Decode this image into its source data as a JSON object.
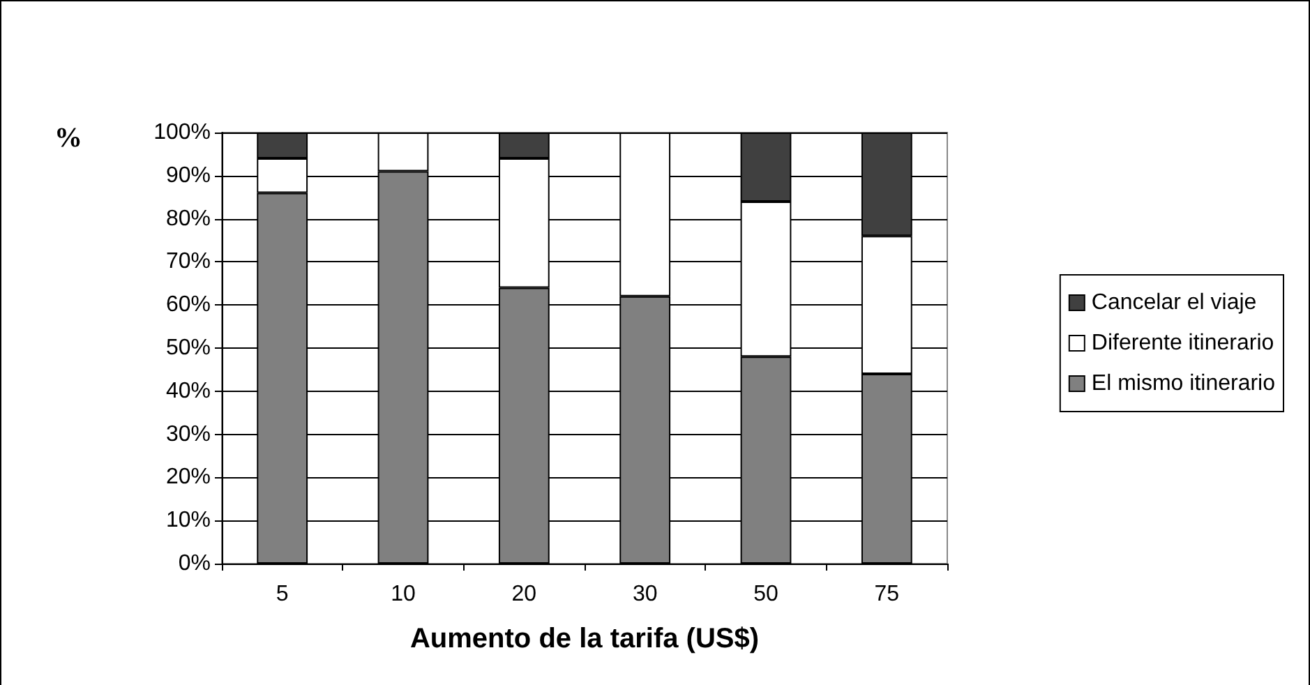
{
  "chart_data": {
    "type": "bar",
    "stacked": true,
    "categories": [
      "5",
      "10",
      "20",
      "30",
      "50",
      "75"
    ],
    "xlabel": "Aumento de la tarifa (US$)",
    "ylabel": "%",
    "ylim": [
      0,
      100
    ],
    "yticks": [
      {
        "value": 0,
        "label": "0%"
      },
      {
        "value": 10,
        "label": "10%"
      },
      {
        "value": 20,
        "label": "20%"
      },
      {
        "value": 30,
        "label": "30%"
      },
      {
        "value": 40,
        "label": "40%"
      },
      {
        "value": 50,
        "label": "50%"
      },
      {
        "value": 60,
        "label": "60%"
      },
      {
        "value": 70,
        "label": "70%"
      },
      {
        "value": 80,
        "label": "80%"
      },
      {
        "value": 90,
        "label": "90%"
      },
      {
        "value": 100,
        "label": "100%"
      }
    ],
    "grid": "y",
    "legend": "right",
    "series": [
      {
        "name": "El mismo itinerario",
        "color": "#808080",
        "values": [
          86,
          91,
          64,
          62,
          48,
          44
        ]
      },
      {
        "name": "Diferente itinerario",
        "color": "#ffffff",
        "values": [
          8,
          9,
          30,
          38,
          36,
          32
        ]
      },
      {
        "name": "Cancelar el viaje",
        "color": "#404040",
        "values": [
          6,
          0,
          6,
          0,
          16,
          24
        ]
      }
    ]
  }
}
